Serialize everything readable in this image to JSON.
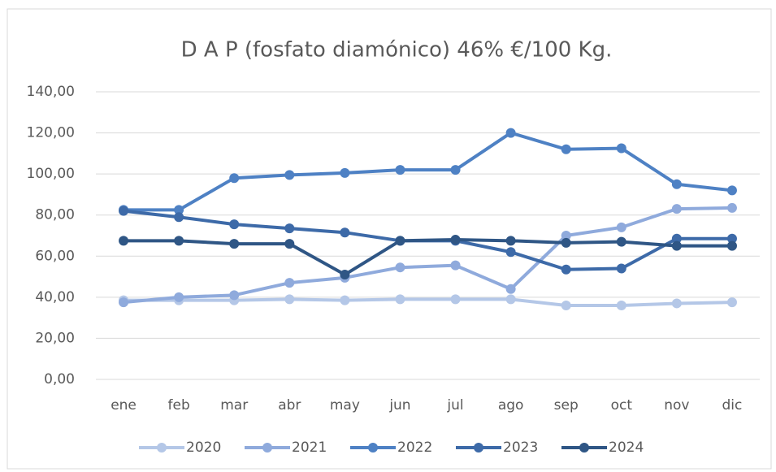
{
  "chart_data": {
    "type": "line",
    "title": "D A P (fosfato diamónico)  46% €/100 Kg.",
    "categories": [
      "ene",
      "feb",
      "mar",
      "abr",
      "may",
      "jun",
      "jul",
      "ago",
      "sep",
      "oct",
      "nov",
      "dic"
    ],
    "series": [
      {
        "name": "2020",
        "color": "#b4c7e7",
        "values": [
          38.5,
          38.5,
          38.5,
          39,
          38.5,
          39,
          39,
          39,
          36,
          36,
          37,
          37.5
        ]
      },
      {
        "name": "2021",
        "color": "#8faadc",
        "values": [
          37.5,
          40,
          41,
          47,
          49.5,
          54.5,
          55.5,
          44,
          70,
          74,
          83,
          83.5
        ]
      },
      {
        "name": "2022",
        "color": "#4e81c4",
        "values": [
          82.5,
          82.5,
          98,
          99.5,
          100.5,
          102,
          102,
          120,
          112,
          112.5,
          95,
          92
        ]
      },
      {
        "name": "2023",
        "color": "#3d6aa8",
        "values": [
          82,
          79,
          75.5,
          73.5,
          71.5,
          67.5,
          67.5,
          62,
          53.5,
          54,
          68.5,
          68.5
        ]
      },
      {
        "name": "2024",
        "color": "#2f5685",
        "values": [
          67.5,
          67.5,
          66,
          66,
          51,
          67.5,
          68,
          67.5,
          66.5,
          67,
          65,
          65
        ]
      }
    ],
    "ylim": [
      0,
      140
    ],
    "yticks": [
      {
        "value": 0,
        "label": "0,00"
      },
      {
        "value": 20,
        "label": "20,00"
      },
      {
        "value": 40,
        "label": "40,00"
      },
      {
        "value": 60,
        "label": "60,00"
      },
      {
        "value": 80,
        "label": "80,00"
      },
      {
        "value": 100,
        "label": "100,00"
      },
      {
        "value": 120,
        "label": "120,00"
      },
      {
        "value": 140,
        "label": "140,00"
      }
    ],
    "grid": true,
    "legend": "bottom"
  }
}
